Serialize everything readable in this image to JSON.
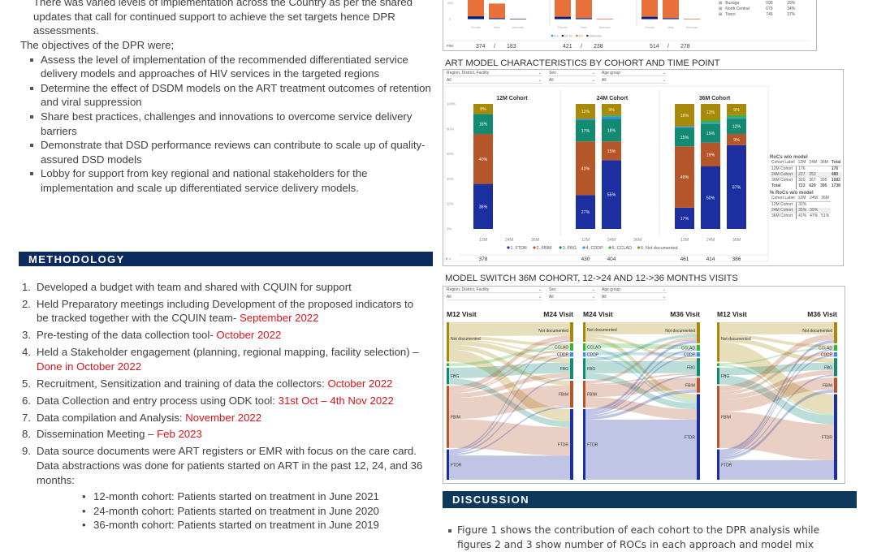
{
  "intro": {
    "paragraph_tail": [
      "There was varied levels of implementation across the Country as per the shared",
      "updates that call for continued support to achieve the set targets hence DPR",
      "assessments."
    ],
    "objectives_lead": "The objectives of the DPR were;",
    "objectives": [
      "Assess the level of implementation of the recommended differentiated service delivery models and approaches of HIV services in the targeted regions",
      "Determine the effect of DSDM models on the ART treatment outcomes of retention and viral suppression",
      "Share best practices, challenges and innovations to overcome service delivery barriers",
      "Demonstrate that DSD performance reviews can contribute to scale up of quality-assured DSD models",
      "Lobby for support from key regional and national stakeholders for the implementation and scale up differentiated service delivery models."
    ]
  },
  "methodology": {
    "heading": "METHODOLOGY",
    "steps": [
      {
        "n": "1.",
        "text": "Developed a budget with team and shared with CQUIN for support",
        "date": ""
      },
      {
        "n": "2.",
        "text": "Held Preparatory meetings including Development of the proposed indicators to be tracked together with the CQUIN team- ",
        "date": "September 2022"
      },
      {
        "n": "3.",
        "text": "Pre-testing of the data collection tool- ",
        "date": "October 2022"
      },
      {
        "n": "4.",
        "text": "Held a Stakeholder engagement (planning, regional mapping, facility selection) – ",
        "date": "Done in October 2022"
      },
      {
        "n": "5.",
        "text": "Recruitment, Sensitization and training of data the collectors: ",
        "date": "October 2022"
      },
      {
        "n": "6.",
        "text": "Data Collection and entry process using ODK tool: ",
        "date": "31st Oct  – 4th Nov 2022"
      },
      {
        "n": "7.",
        "text": "Data compilation and Analysis: ",
        "date": "November 2022"
      },
      {
        "n": "8.",
        "text": "Dissemination Meeting – ",
        "date": "Feb 2023"
      },
      {
        "n": "9.",
        "text": "Data source documents were ART registers or EMR with focus on the care card. Data abstractions was done for patients started on ART in the past 12, 24, and 36 months:",
        "date": ""
      }
    ],
    "cohorts": [
      "12-month cohort:  Patients started on treatment in June 2021",
      "24-month cohort: Patients started on treatment in June 2020",
      "36-month cohort: Patients started on treatment in June 2019"
    ]
  },
  "region_table": {
    "rows": [
      [
        "Busoga",
        "590",
        "29%"
      ],
      [
        "North Central",
        "679",
        "34%"
      ],
      [
        "Tooro",
        "746",
        "37%"
      ]
    ]
  },
  "filters": {
    "labels": [
      "Region, District, Facility",
      "Sex",
      "Age group"
    ],
    "value": "All"
  },
  "chart_data": [
    {
      "type": "bar",
      "stacked": true,
      "categories": [
        "Female",
        "Male",
        "Unknown"
      ],
      "y_ticks": [
        "0",
        "200"
      ],
      "legend": [
        "0-9",
        "10-19",
        "20+",
        "Unknown"
      ],
      "colors": {
        "0-9": "#2e8fe8",
        "10-19": "#141b6e",
        "20+": "#e8703a",
        "Unknown": "#5b2a86"
      },
      "legend_placement": "bottom",
      "panels": [
        {
          "values": {
            "0-9": [
              5,
              5,
              0
            ],
            "10-19": [
              30,
              5,
              0
            ],
            "20+": [
              339,
              173,
              0
            ],
            "Unknown": [
              0,
              0,
              3
            ]
          },
          "fm": [
            "374",
            "/",
            "183"
          ]
        },
        {
          "values": {
            "0-9": [
              5,
              5,
              0
            ],
            "10-19": [
              25,
              5,
              0
            ],
            "20+": [
              391,
              228,
              3
            ],
            "Unknown": [
              0,
              0,
              0
            ]
          },
          "fm": [
            "421",
            "/",
            "238"
          ]
        },
        {
          "values": {
            "0-9": [
              5,
              5,
              0
            ],
            "10-19": [
              25,
              5,
              0
            ],
            "20+": [
              484,
              268,
              3
            ],
            "Unknown": [
              0,
              0,
              0
            ]
          },
          "fm": [
            "514",
            "/",
            "278"
          ]
        }
      ],
      "fm_label": "F/M"
    },
    {
      "type": "bar",
      "stacked": true,
      "title": "ART MODEL CHARACTERISTICS BY COHORT AND TIME POINT",
      "series_names": [
        "1. FTDR",
        "2. FBIM",
        "3. FBG",
        "4. CDDP",
        "5. CCLAD",
        "6. Not documented"
      ],
      "colors": [
        "#1b2fa0",
        "#b5562a",
        "#138a72",
        "#3a8ee6",
        "#3bb33b",
        "#a88a0a"
      ],
      "y_ticks": [
        "0%",
        "20%",
        "40%",
        "60%",
        "80%",
        "100%"
      ],
      "ylim": [
        0,
        100
      ],
      "x_ticks": [
        "12M",
        "24M",
        "36M"
      ],
      "legend_placement": "bottom",
      "n_label": "n =",
      "cohorts": [
        {
          "title": "12M Cohort",
          "bars": [
            {
              "x": "12M",
              "values": [
                36,
                40,
                16,
                0,
                0,
                8
              ],
              "n": "378"
            }
          ]
        },
        {
          "title": "24M Cohort",
          "bars": [
            {
              "x": "12M",
              "values": [
                27,
                43,
                17,
                1,
                0,
                12
              ],
              "n": "430"
            },
            {
              "x": "24M",
              "values": [
                55,
                15,
                18,
                2,
                1,
                9
              ],
              "n": "404"
            }
          ]
        },
        {
          "title": "36M Cohort",
          "bars": [
            {
              "x": "12M",
              "values": [
                17,
                49,
                15,
                1,
                0,
                18
              ],
              "n": "461"
            },
            {
              "x": "24M",
              "values": [
                50,
                19,
                15,
                1,
                2,
                13
              ],
              "n": "414"
            },
            {
              "x": "36M",
              "values": [
                67,
                9,
                12,
                1,
                2,
                9
              ],
              "n": "386"
            }
          ]
        }
      ]
    },
    {
      "type": "sankey",
      "title": "MODEL SWITCH 36M COHORT, 12->24 AND 12->36 MONTHS VISITS",
      "node_order": [
        "Not documented",
        "CCLAD",
        "CDDP",
        "FBG",
        "FBIM",
        "FTDR"
      ],
      "node_colors": {
        "Not documented": "#a88a0a",
        "CCLAD": "#3bb33b",
        "CDDP": "#3a8ee6",
        "FBG": "#138a72",
        "FBIM": "#b5562a",
        "FTDR": "#1b2fa0"
      },
      "panels": [
        {
          "left_title": "M12 Visit",
          "right_title": "M24 Visit",
          "left_labels": [
            "Not documented",
            "FBG",
            "FBIM",
            "FTDR"
          ],
          "right_labels": [
            "Not documented",
            "CCLAD",
            "CDDP",
            "FBG",
            "FBIM",
            "FTDR"
          ],
          "flows": [
            [
              "Not documented",
              "Not documented",
              9
            ],
            [
              "Not documented",
              "CCLAD",
              2
            ],
            [
              "Not documented",
              "CDDP",
              1
            ],
            [
              "Not documented",
              "FBG",
              3
            ],
            [
              "Not documented",
              "FBIM",
              3
            ],
            [
              "Not documented",
              "FTDR",
              8
            ],
            [
              "CCLAD",
              "CCLAD",
              2
            ],
            [
              "FBG",
              "FBG",
              7
            ],
            [
              "FBG",
              "FTDR",
              4
            ],
            [
              "FBIM",
              "Not documented",
              3
            ],
            [
              "FBIM",
              "CCLAD",
              1
            ],
            [
              "FBIM",
              "CDDP",
              1
            ],
            [
              "FBIM",
              "FBG",
              3
            ],
            [
              "FBIM",
              "FBIM",
              14
            ],
            [
              "FBIM",
              "FTDR",
              19
            ],
            [
              "FTDR",
              "Not documented",
              1
            ],
            [
              "FTDR",
              "CDDP",
              1
            ],
            [
              "FTDR",
              "FBG",
              1
            ],
            [
              "FTDR",
              "FBIM",
              1
            ],
            [
              "FTDR",
              "FTDR",
              16
            ]
          ]
        },
        {
          "left_title": "M24 Visit",
          "right_title": "M36 Visit",
          "left_labels": [
            "Not documented",
            "CCLAD",
            "CDDP",
            "FBG",
            "FBIM",
            "FTDR"
          ],
          "right_labels": [
            "Not documented",
            "CCLAD",
            "CDDP",
            "FBG",
            "FBIM",
            "FTDR"
          ],
          "flows": [
            [
              "Not documented",
              "Not documented",
              8
            ],
            [
              "Not documented",
              "FBG",
              2
            ],
            [
              "Not documented",
              "FTDR",
              3
            ],
            [
              "CCLAD",
              "CCLAD",
              3
            ],
            [
              "CCLAD",
              "FTDR",
              2
            ],
            [
              "CDDP",
              "CDDP",
              2
            ],
            [
              "CDDP",
              "FTDR",
              1
            ],
            [
              "FBG",
              "Not documented",
              2
            ],
            [
              "FBG",
              "FBG",
              8
            ],
            [
              "FBG",
              "FTDR",
              4
            ],
            [
              "FBIM",
              "Not documented",
              2
            ],
            [
              "FBIM",
              "FBG",
              1
            ],
            [
              "FBIM",
              "FBIM",
              8
            ],
            [
              "FBIM",
              "FTDR",
              7
            ],
            [
              "FTDR",
              "Not documented",
              2
            ],
            [
              "FTDR",
              "CCLAD",
              1
            ],
            [
              "FTDR",
              "CDDP",
              1
            ],
            [
              "FTDR",
              "FBG",
              1
            ],
            [
              "FTDR",
              "FBIM",
              2
            ],
            [
              "FTDR",
              "FTDR",
              40
            ]
          ]
        },
        {
          "left_title": "M12 Visit",
          "right_title": "M36 Visit",
          "left_labels": [
            "Not documented",
            "FBG",
            "FBIM",
            "FTDR"
          ],
          "right_labels": [
            "Not documented",
            "CCLAD",
            "CDDP",
            "FBG",
            "FBIM",
            "FTDR"
          ],
          "flows": [
            [
              "Not documented",
              "Not documented",
              8
            ],
            [
              "Not documented",
              "CCLAD",
              2
            ],
            [
              "Not documented",
              "FBG",
              3
            ],
            [
              "Not documented",
              "FTDR",
              13
            ],
            [
              "CCLAD",
              "CCLAD",
              1
            ],
            [
              "CCLAD",
              "FTDR",
              1
            ],
            [
              "FBG",
              "FBG",
              5
            ],
            [
              "FBG",
              "FTDR",
              6
            ],
            [
              "FBIM",
              "Not documented",
              4
            ],
            [
              "FBIM",
              "CDDP",
              2
            ],
            [
              "FBIM",
              "FBG",
              3
            ],
            [
              "FBIM",
              "FBIM",
              8
            ],
            [
              "FBIM",
              "FTDR",
              24
            ],
            [
              "FTDR",
              "Not documented",
              2
            ],
            [
              "FTDR",
              "CCLAD",
              1
            ],
            [
              "FTDR",
              "CDDP",
              1
            ],
            [
              "FTDR",
              "FBG",
              1
            ],
            [
              "FTDR",
              "FBIM",
              2
            ],
            [
              "FTDR",
              "FTDR",
              13
            ]
          ]
        }
      ]
    }
  ],
  "rocs": {
    "title": "RoCs w/o model",
    "headers": [
      "Cohort Label",
      "12M",
      "24M",
      "36M",
      "Total"
    ],
    "rows": [
      [
        "12M Cohort",
        "176",
        "",
        "",
        "176"
      ],
      [
        "24M Cohort",
        "227",
        "253",
        "",
        "480"
      ],
      [
        "36M Cohort",
        "320",
        "367",
        "395",
        "1082"
      ],
      [
        "Total",
        "723",
        "620",
        "395",
        "1738"
      ]
    ],
    "pct_title": "% RoCs w/o model",
    "pct_headers": [
      "Cohort Label",
      "12M",
      "24M",
      "36M"
    ],
    "pct_rows": [
      [
        "12M Cohort",
        "32%",
        "",
        ""
      ],
      [
        "24M Cohort",
        "35%",
        "39%",
        ""
      ],
      [
        "36M Cohort",
        "41%",
        "47%",
        "51%"
      ]
    ]
  },
  "discussion": {
    "heading": "DISCUSSION",
    "bullet": "Figure 1 shows the contribution of each cohort to the DPR analysis while figures 2 and 3 show number of ROCs in each approach and model mix"
  }
}
